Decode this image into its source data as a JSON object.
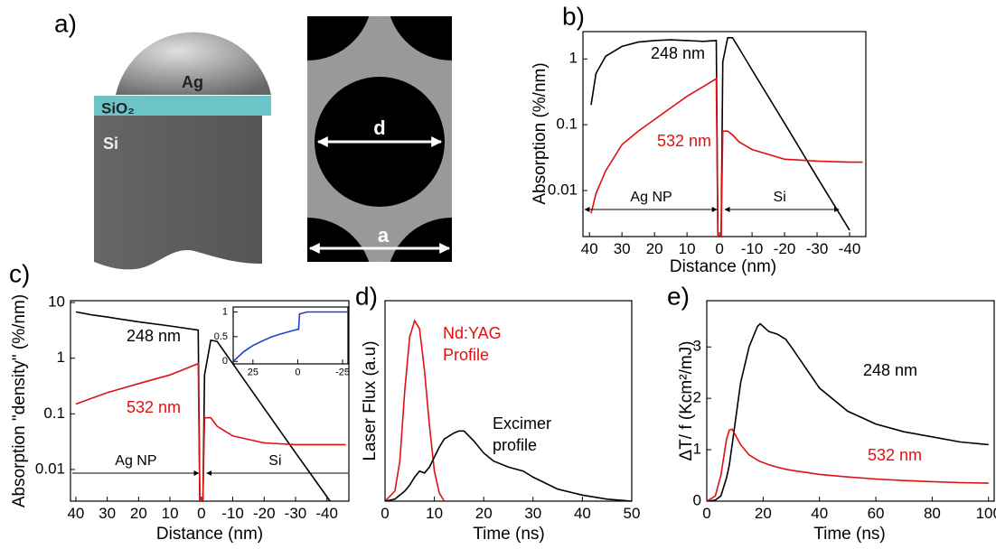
{
  "diagram": {
    "label": "a)",
    "particle": "Ag",
    "oxide": "SiO₂",
    "substrate": "Si",
    "diameter": "d",
    "period": "a"
  },
  "chart_data": [
    {
      "panel": "b)",
      "type": "line",
      "log_y": true,
      "xlabel": "Distance (nm)",
      "ylabel": "Absorption (%/nm)",
      "x": [
        39.5,
        38,
        35,
        30,
        25,
        20,
        15,
        10,
        5,
        1,
        0.5,
        -0.5,
        -1,
        -2.5,
        -4,
        -6,
        -10,
        -20,
        -30,
        -40,
        -44
      ],
      "series": [
        {
          "name": "248 nm",
          "color": "#000000",
          "values": [
            0.2,
            0.6,
            1.1,
            1.55,
            1.8,
            1.9,
            1.95,
            1.9,
            1.85,
            1.9,
            0.002,
            0.002,
            0.9,
            2.1,
            2.1,
            1.45,
            0.68,
            0.105,
            0.016,
            0.0025,
            null
          ]
        },
        {
          "name": "532 nm",
          "color": "#e01010",
          "values": [
            0.0045,
            0.009,
            0.02,
            0.05,
            0.08,
            0.12,
            0.18,
            0.27,
            0.38,
            0.5,
            0.002,
            0.002,
            0.08,
            0.08,
            0.07,
            0.055,
            0.042,
            0.03,
            0.028,
            0.027,
            0.027
          ]
        }
      ],
      "xlim": [
        42,
        -45
      ],
      "ylim": [
        0.002,
        2.6
      ],
      "xticks": [
        40,
        30,
        20,
        10,
        0,
        -10,
        -20,
        -30,
        -40
      ],
      "yticks": [
        0.01,
        0.1,
        1
      ],
      "annotations": [
        "Ag NP",
        "Si"
      ]
    },
    {
      "panel": "c)",
      "type": "line",
      "log_y": true,
      "xlabel": "Distance (nm)",
      "ylabel": "Absorption \"density\" (%/nm)",
      "x": [
        40,
        35,
        30,
        20,
        10,
        1,
        0.5,
        -0.5,
        -1,
        -3,
        -5,
        -10,
        -20,
        -30,
        -41,
        -46
      ],
      "series": [
        {
          "name": "248 nm",
          "color": "#000000",
          "values": [
            6.8,
            6.0,
            5.5,
            4.5,
            3.8,
            3.2,
            0.0027,
            0.0027,
            0.5,
            2.1,
            2.0,
            0.8,
            0.126,
            0.02,
            0.0027,
            null
          ]
        },
        {
          "name": "532 nm",
          "color": "#e01010",
          "values": [
            0.15,
            0.19,
            0.24,
            0.35,
            0.5,
            0.8,
            0.0027,
            0.0027,
            0.085,
            0.085,
            0.06,
            0.04,
            0.03,
            0.028,
            0.028,
            0.028
          ]
        }
      ],
      "xlim": [
        41.7,
        -47
      ],
      "ylim": [
        0.0027,
        10.8
      ],
      "xticks": [
        40,
        30,
        20,
        10,
        0,
        -10,
        -20,
        -30,
        -40
      ],
      "yticks": [
        0.01,
        0.1,
        1,
        10
      ],
      "annotations": [
        "Ag NP",
        "Si"
      ],
      "inset": {
        "type": "line",
        "x": [
          36,
          30,
          25,
          20,
          15,
          10,
          5,
          0,
          -0.5,
          -1,
          -5,
          -28
        ],
        "series": [
          {
            "color": "#1f3fd0",
            "values": [
              0,
              0.2,
              0.32,
              0.41,
              0.49,
              0.55,
              0.6,
              0.65,
              0.65,
              0.96,
              1,
              1
            ]
          }
        ],
        "xlim": [
          36,
          -28
        ],
        "ylim": [
          -0.05,
          1.1
        ],
        "xticks": [
          25,
          0,
          -25
        ],
        "yticks": [
          0,
          0.5,
          1
        ]
      }
    },
    {
      "panel": "d)",
      "type": "line",
      "xlabel": "Time (ns)",
      "ylabel": "Laser Flux (a.u)",
      "x": [
        0,
        2,
        3,
        4,
        5,
        6,
        7,
        8,
        9,
        10,
        11,
        12,
        14,
        15,
        16,
        18,
        20,
        22,
        25,
        28,
        30,
        35,
        40,
        45,
        50
      ],
      "series": [
        {
          "label_lines": [
            "Nd:YAG",
            "Profile"
          ],
          "color": "#e01010",
          "values": [
            0,
            0.05,
            0.2,
            0.55,
            0.82,
            0.9,
            0.86,
            0.65,
            0.38,
            0.15,
            0.04,
            0,
            null,
            null,
            null,
            null,
            null,
            null,
            null,
            null,
            null,
            null,
            null,
            null,
            null
          ]
        },
        {
          "label_lines": [
            "Excimer",
            "profile"
          ],
          "color": "#000000",
          "values": [
            0,
            0.01,
            0.03,
            0.05,
            0.08,
            0.12,
            0.15,
            0.14,
            0.17,
            0.22,
            0.27,
            0.31,
            0.34,
            0.35,
            0.35,
            0.3,
            0.24,
            0.2,
            0.17,
            0.15,
            0.12,
            0.06,
            0.03,
            0.01,
            0
          ]
        }
      ],
      "xlim": [
        0,
        50
      ],
      "ylim": [
        0,
        1
      ],
      "xticks": [
        0,
        10,
        20,
        30,
        40,
        50
      ]
    },
    {
      "panel": "e)",
      "type": "line",
      "xlabel": "Time (ns)",
      "ylabel": "ΔT/ f (Kcm²/mJ)",
      "x": [
        0,
        3,
        5,
        7,
        8,
        9,
        10,
        12,
        15,
        18,
        19,
        20,
        22,
        25,
        28,
        30,
        35,
        40,
        50,
        60,
        70,
        80,
        90,
        100
      ],
      "series": [
        {
          "name": "248 nm",
          "color": "#000000",
          "values": [
            0,
            0.02,
            0.1,
            0.45,
            0.7,
            1.1,
            1.5,
            2.3,
            3.0,
            3.4,
            3.45,
            3.4,
            3.3,
            3.25,
            3.15,
            3.0,
            2.6,
            2.2,
            1.75,
            1.5,
            1.35,
            1.25,
            1.15,
            1.1
          ]
        },
        {
          "name": "532 nm",
          "color": "#e01010",
          "values": [
            0,
            0.1,
            0.5,
            1.2,
            1.38,
            1.4,
            1.3,
            1.1,
            0.9,
            0.8,
            0.77,
            0.75,
            0.71,
            0.66,
            0.62,
            0.6,
            0.56,
            0.52,
            0.47,
            0.43,
            0.4,
            0.38,
            0.36,
            0.35
          ]
        }
      ],
      "xlim": [
        0,
        102
      ],
      "ylim": [
        0,
        3.9
      ],
      "xticks": [
        0,
        20,
        40,
        60,
        80,
        100
      ],
      "yticks": [
        0,
        1,
        2,
        3
      ]
    }
  ]
}
